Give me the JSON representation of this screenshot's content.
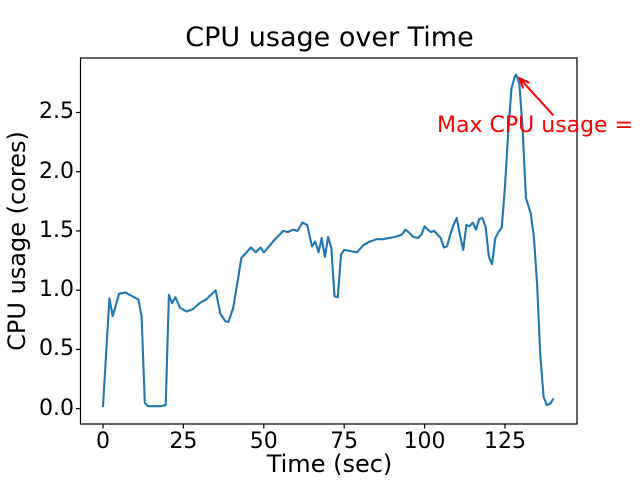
{
  "figure": {
    "background": "#ffffff"
  },
  "chart_data": {
    "type": "line",
    "title": "CPU usage over Time",
    "xlabel": "Time (sec)",
    "ylabel": "CPU usage (cores)",
    "xlim": [
      -7,
      147.4
    ],
    "ylim": [
      -0.13,
      2.96
    ],
    "xticks": [
      0,
      25,
      50,
      75,
      100,
      125
    ],
    "xtick_labels": [
      "0",
      "25",
      "50",
      "75",
      "100",
      "125"
    ],
    "yticks": [
      0.0,
      0.5,
      1.0,
      1.5,
      2.0,
      2.5
    ],
    "ytick_labels": [
      "0.0",
      "0.5",
      "1.0",
      "1.5",
      "2.0",
      "2.5"
    ],
    "grid": false,
    "legend": "none",
    "axes_color": "#000000",
    "series": [
      {
        "name": "CPU usage",
        "color": "#1f77b4",
        "points": [
          [
            0,
            0.02
          ],
          [
            2,
            0.93
          ],
          [
            3,
            0.78
          ],
          [
            5,
            0.97
          ],
          [
            7,
            0.98
          ],
          [
            9,
            0.95
          ],
          [
            11,
            0.92
          ],
          [
            12,
            0.78
          ],
          [
            13,
            0.05
          ],
          [
            14,
            0.02
          ],
          [
            16,
            0.02
          ],
          [
            18,
            0.02
          ],
          [
            19.5,
            0.03
          ],
          [
            20.5,
            0.96
          ],
          [
            21.5,
            0.89
          ],
          [
            22.5,
            0.94
          ],
          [
            24,
            0.85
          ],
          [
            26,
            0.82
          ],
          [
            28,
            0.84
          ],
          [
            30,
            0.89
          ],
          [
            32,
            0.92
          ],
          [
            34,
            0.97
          ],
          [
            35,
            1.0
          ],
          [
            36.5,
            0.8
          ],
          [
            38,
            0.74
          ],
          [
            39,
            0.73
          ],
          [
            40.5,
            0.85
          ],
          [
            42,
            1.1
          ],
          [
            43,
            1.27
          ],
          [
            45,
            1.33
          ],
          [
            46,
            1.36
          ],
          [
            47.5,
            1.32
          ],
          [
            49,
            1.36
          ],
          [
            50,
            1.32
          ],
          [
            52,
            1.38
          ],
          [
            53.5,
            1.43
          ],
          [
            55,
            1.47
          ],
          [
            56,
            1.5
          ],
          [
            57.5,
            1.49
          ],
          [
            59,
            1.51
          ],
          [
            60.5,
            1.5
          ],
          [
            62,
            1.57
          ],
          [
            63.5,
            1.55
          ],
          [
            65,
            1.37
          ],
          [
            66,
            1.41
          ],
          [
            67,
            1.32
          ],
          [
            68,
            1.44
          ],
          [
            69,
            1.28
          ],
          [
            70,
            1.45
          ],
          [
            71,
            1.36
          ],
          [
            72,
            0.95
          ],
          [
            73,
            0.94
          ],
          [
            74,
            1.3
          ],
          [
            75,
            1.34
          ],
          [
            77,
            1.33
          ],
          [
            79,
            1.32
          ],
          [
            81,
            1.38
          ],
          [
            83,
            1.41
          ],
          [
            85,
            1.43
          ],
          [
            87,
            1.43
          ],
          [
            89,
            1.44
          ],
          [
            91,
            1.45
          ],
          [
            93,
            1.47
          ],
          [
            94,
            1.51
          ],
          [
            95,
            1.49
          ],
          [
            96.5,
            1.45
          ],
          [
            98,
            1.44
          ],
          [
            99,
            1.47
          ],
          [
            100,
            1.54
          ],
          [
            101,
            1.51
          ],
          [
            102,
            1.49
          ],
          [
            103,
            1.5
          ],
          [
            104,
            1.47
          ],
          [
            105,
            1.44
          ],
          [
            106,
            1.36
          ],
          [
            107,
            1.37
          ],
          [
            108,
            1.47
          ],
          [
            109,
            1.55
          ],
          [
            110,
            1.61
          ],
          [
            111,
            1.47
          ],
          [
            112,
            1.34
          ],
          [
            113,
            1.55
          ],
          [
            114,
            1.54
          ],
          [
            115,
            1.57
          ],
          [
            116,
            1.51
          ],
          [
            117,
            1.6
          ],
          [
            118,
            1.61
          ],
          [
            119,
            1.53
          ],
          [
            120,
            1.28
          ],
          [
            121,
            1.22
          ],
          [
            122,
            1.44
          ],
          [
            123,
            1.49
          ],
          [
            124,
            1.53
          ],
          [
            125,
            1.88
          ],
          [
            126,
            2.33
          ],
          [
            127,
            2.7
          ],
          [
            128,
            2.8
          ],
          [
            128.5,
            2.82
          ],
          [
            129.5,
            2.74
          ],
          [
            130.5,
            2.35
          ],
          [
            131.5,
            1.78
          ],
          [
            133,
            1.65
          ],
          [
            134,
            1.45
          ],
          [
            135,
            1.05
          ],
          [
            136,
            0.45
          ],
          [
            137,
            0.1
          ],
          [
            138,
            0.03
          ],
          [
            139,
            0.04
          ],
          [
            140,
            0.08
          ]
        ]
      }
    ],
    "annotation": {
      "text": "Max CPU usage = ",
      "color": "#ff0000",
      "target_xy": [
        128.5,
        2.82
      ],
      "max_value": 2.82
    }
  }
}
